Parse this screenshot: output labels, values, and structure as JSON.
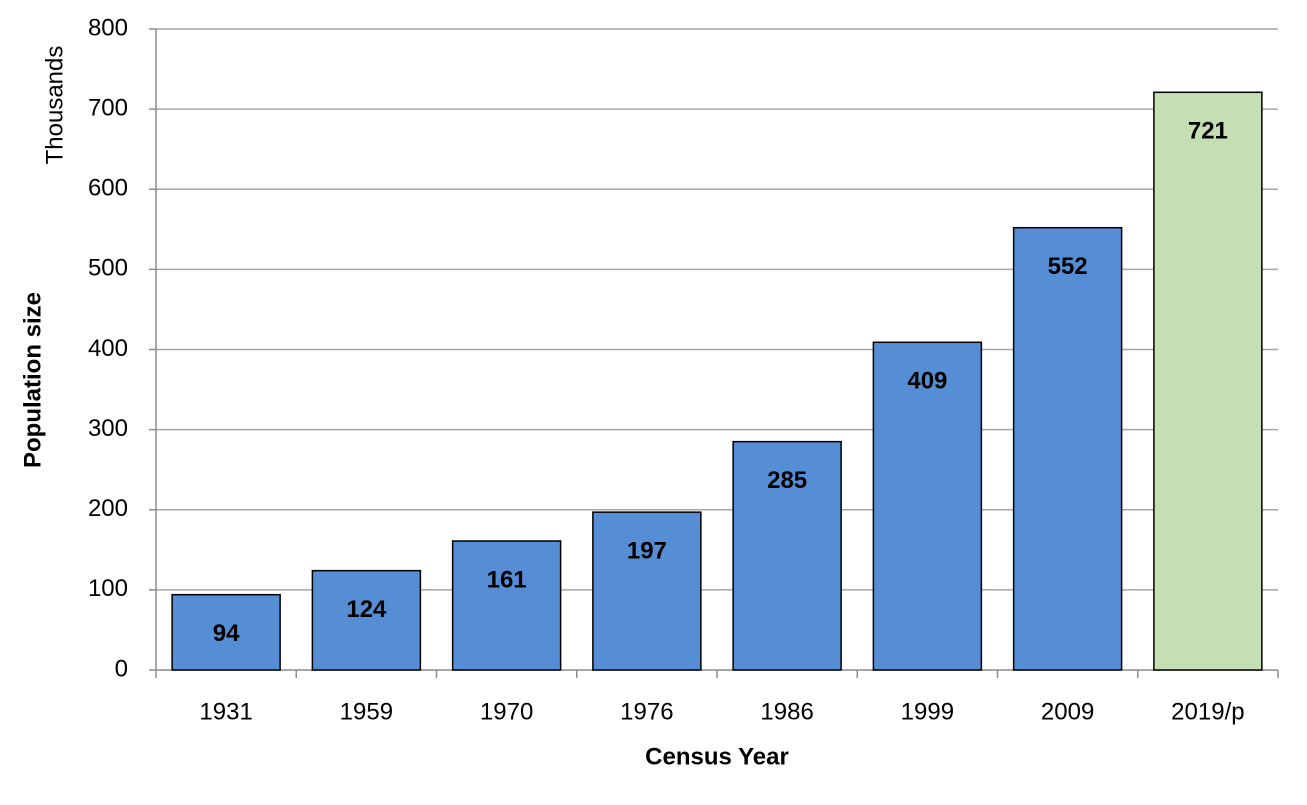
{
  "chart_data": {
    "type": "bar",
    "y_label": "Population size",
    "y_unit_label": "Thousands",
    "x_label": "Census Year",
    "categories": [
      "1931",
      "1959",
      "1970",
      "1976",
      "1986",
      "1999",
      "2009",
      "2019/p"
    ],
    "values": [
      94,
      124,
      161,
      197,
      285,
      409,
      552,
      721
    ],
    "colors": [
      "#558ed5",
      "#558ed5",
      "#558ed5",
      "#558ed5",
      "#558ed5",
      "#558ed5",
      "#558ed5",
      "#c3dfb3"
    ],
    "label_colors": [
      "#ffffff",
      "#ffffff",
      "#ffffff",
      "#ffffff",
      "#ffffff",
      "#ffffff",
      "#ffffff",
      "#000000"
    ],
    "ylim": [
      0,
      800
    ],
    "yticks": [
      0,
      100,
      200,
      300,
      400,
      500,
      600,
      700,
      800
    ],
    "grid": true
  }
}
